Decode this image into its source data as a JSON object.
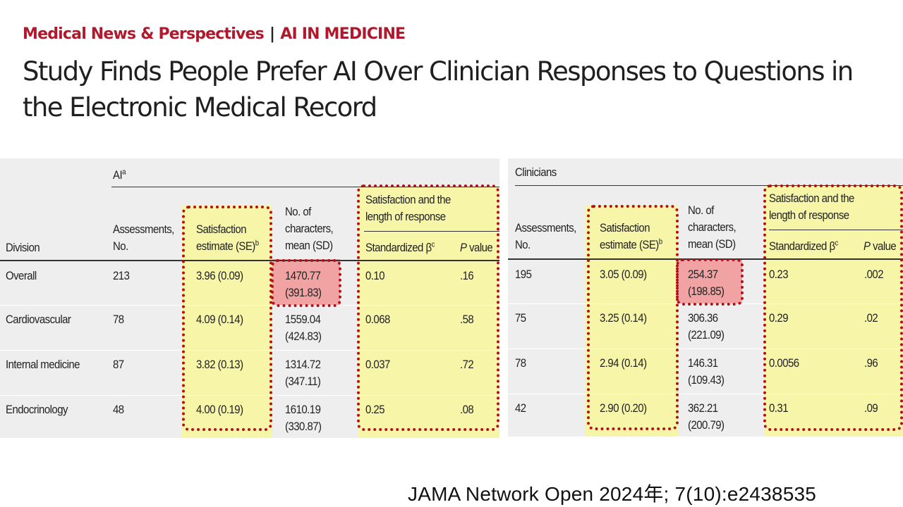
{
  "header": {
    "section": "Medical News & Perspectives",
    "separator": "|",
    "topic": "AI IN MEDICINE",
    "title": "Study Finds People Prefer AI Over Clinician Responses to Questions in the Electronic Medical Record"
  },
  "ai_table": {
    "group_label": "AI",
    "group_sup": "a",
    "division_header": "Division",
    "col_assessments": [
      "Assessments,",
      "No."
    ],
    "col_satisfaction": [
      "Satisfaction",
      "estimate (SE)"
    ],
    "col_satisfaction_sup": "b",
    "col_chars": [
      "No. of",
      "characters,",
      "mean (SD)"
    ],
    "group_length": [
      "Satisfaction and the",
      "length of response"
    ],
    "col_beta": "Standardized β",
    "col_beta_sup": "c",
    "col_p_italic": "P",
    "col_p_rest": " value",
    "rows": [
      {
        "division": "Overall",
        "assessments": "213",
        "satisfaction": "3.96 (0.09)",
        "chars_mean": "1470.77",
        "chars_sd": "(391.83)",
        "beta": "0.10",
        "p": ".16"
      },
      {
        "division": "Cardiovascular",
        "assessments": "78",
        "satisfaction": "4.09 (0.14)",
        "chars_mean": "1559.04",
        "chars_sd": "(424.83)",
        "beta": "0.068",
        "p": ".58"
      },
      {
        "division": "Internal medicine",
        "assessments": "87",
        "satisfaction": "3.82 (0.13)",
        "chars_mean": "1314.72",
        "chars_sd": "(347.11)",
        "beta": "0.037",
        "p": ".72"
      },
      {
        "division": "Endocrinology",
        "assessments": "48",
        "satisfaction": "4.00 (0.19)",
        "chars_mean": "1610.19",
        "chars_sd": "(330.87)",
        "beta": "0.25",
        "p": ".08"
      }
    ]
  },
  "clinician_table": {
    "group_label": "Clinicians",
    "col_assessments": [
      "Assessments,",
      "No."
    ],
    "col_satisfaction": [
      "Satisfaction",
      "estimate (SE)"
    ],
    "col_satisfaction_sup": "b",
    "col_chars": [
      "No. of",
      "characters,",
      "mean (SD)"
    ],
    "group_length": [
      "Satisfaction and the",
      "length of response"
    ],
    "col_beta": "Standardized β",
    "col_beta_sup": "c",
    "col_p_italic": "P",
    "col_p_rest": " value",
    "rows": [
      {
        "assessments": "195",
        "satisfaction": "3.05 (0.09)",
        "chars_mean": "254.37",
        "chars_sd": "(198.85)",
        "beta": "0.23",
        "p": ".002"
      },
      {
        "assessments": "75",
        "satisfaction": "3.25 (0.14)",
        "chars_mean": "306.36",
        "chars_sd": "(221.09)",
        "beta": "0.29",
        "p": ".02"
      },
      {
        "assessments": "78",
        "satisfaction": "2.94 (0.14)",
        "chars_mean": "146.31",
        "chars_sd": "(109.43)",
        "beta": "0.0056",
        "p": ".96"
      },
      {
        "assessments": "42",
        "satisfaction": "2.90 (0.20)",
        "chars_mean": "362.21",
        "chars_sd": "(200.79)",
        "beta": "0.31",
        "p": ".09"
      }
    ]
  },
  "highlight_colors": {
    "yellow": "#f7f6a8",
    "pink": "#f1a3a3",
    "dotted_border": "#b0101a"
  },
  "citation": "JAMA Network Open 2024年; 7(10):e2438535"
}
